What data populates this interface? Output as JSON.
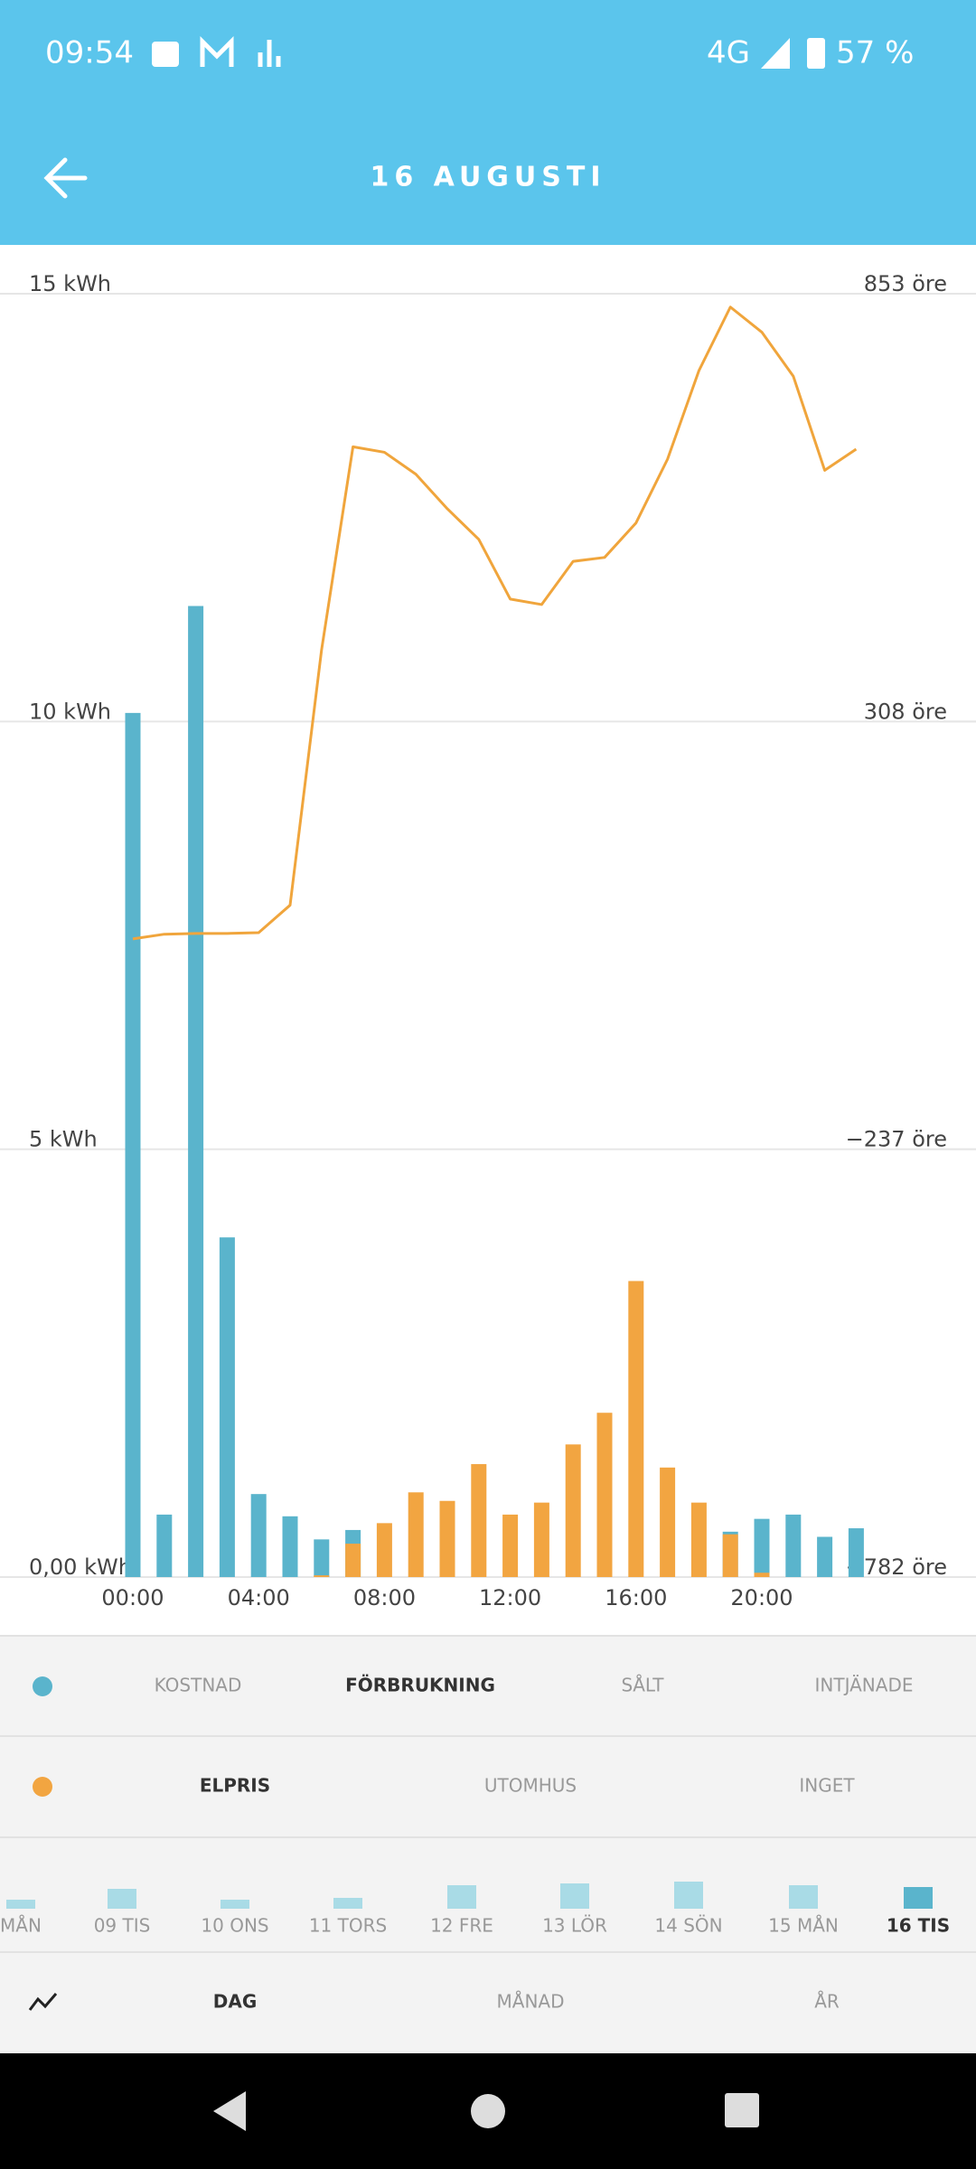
{
  "status_bar": {
    "time": "09:54",
    "network": "4G",
    "battery": "57 %"
  },
  "header": {
    "title": "16 AUGUSTI"
  },
  "chart_data": {
    "type": "bar",
    "categories": [
      "00:00",
      null,
      null,
      null,
      "04:00",
      null,
      null,
      null,
      "08:00",
      null,
      null,
      null,
      "12:00",
      null,
      null,
      null,
      "16:00",
      null,
      null,
      null,
      "20:00",
      null,
      null,
      null
    ],
    "series": [
      {
        "color": "#5ab4cc",
        "values": [
          10.1,
          0.73,
          11.35,
          3.97,
          0.97,
          0.71,
          0.44,
          0.55,
          null,
          null,
          null,
          null,
          null,
          null,
          null,
          null,
          null,
          null,
          null,
          0.53,
          0.68,
          0.73,
          0.47,
          0.57
        ]
      },
      {
        "color": "#f2a541",
        "values": [
          null,
          null,
          null,
          null,
          null,
          null,
          0.02,
          0.39,
          0.63,
          0.99,
          0.89,
          1.32,
          0.73,
          0.87,
          1.55,
          1.92,
          3.46,
          1.28,
          0.87,
          0.5,
          0.05,
          null,
          null,
          null
        ]
      },
      {
        "type": "line",
        "axis": "y2",
        "color": "#f0a53c",
        "values": [
          31,
          37,
          38,
          38,
          39,
          74,
          399,
          658,
          651,
          623,
          579,
          540,
          464,
          457,
          512,
          517,
          561,
          642,
          755,
          836,
          804,
          748,
          628,
          655
        ]
      }
    ],
    "ylim": [
      0,
      15
    ],
    "yticks": [
      {
        "value": 0,
        "label": "0,00 kWh"
      },
      {
        "value": 5,
        "label": "5 kWh"
      },
      {
        "value": 10,
        "label": "10 kWh"
      },
      {
        "value": 15,
        "label": "15 kWh"
      }
    ],
    "y2lim": [
      -782,
      853
    ],
    "y2ticks": [
      {
        "value": -782,
        "label": "−782 öre"
      },
      {
        "value": -237,
        "label": "−237 öre"
      },
      {
        "value": 308,
        "label": "308 öre"
      },
      {
        "value": 853,
        "label": "853 öre"
      }
    ],
    "grid": true
  },
  "tabs_primary": [
    "KOSTNAD",
    "FÖRBRUKNING",
    "SÅLT",
    "INTJÄNADE"
  ],
  "tabs_secondary": [
    "ELPRIS",
    "UTOMHUS",
    "INGET"
  ],
  "days": [
    "MÅN",
    "09 TIS",
    "10 ONS",
    "11 TORS",
    "12 FRE",
    "13 LÖR",
    "14 SÖN",
    "15 MÅN",
    "16 TIS"
  ],
  "periods": [
    "DAG",
    "MÅNAD",
    "ÅR"
  ]
}
